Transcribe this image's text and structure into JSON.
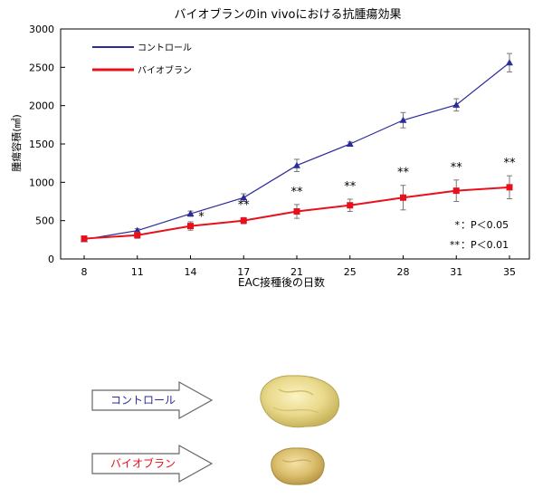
{
  "chart_data": {
    "type": "line",
    "title": "バイオブランのin vivoにおける抗腫瘍効果",
    "xlabel": "EAC接種後の日数",
    "ylabel": "腫瘍容積(㎣)",
    "categories": [
      "8",
      "11",
      "14",
      "17",
      "21",
      "25",
      "28",
      "31",
      "35"
    ],
    "ylim": [
      0,
      3000
    ],
    "yticks": [
      "0",
      "500",
      "1000",
      "1500",
      "2000",
      "2500",
      "3000"
    ],
    "grid": false,
    "legend_position": "top-left",
    "series": [
      {
        "name": "コントロール",
        "color": "#2b2b9a",
        "marker": "triangle",
        "values": [
          255,
          370,
          590,
          800,
          1220,
          1500,
          1810,
          2010,
          2560
        ],
        "errors": [
          20,
          25,
          35,
          50,
          80,
          25,
          100,
          80,
          120
        ]
      },
      {
        "name": "バイオブラン",
        "color": "#e8101a",
        "marker": "square",
        "values": [
          265,
          310,
          430,
          500,
          620,
          700,
          800,
          890,
          935
        ],
        "errors": [
          25,
          40,
          55,
          40,
          90,
          80,
          160,
          140,
          150
        ]
      }
    ],
    "significance": [
      {
        "category": "14",
        "label": "*"
      },
      {
        "category": "17",
        "label": "**"
      },
      {
        "category": "21",
        "label": "**"
      },
      {
        "category": "25",
        "label": "**"
      },
      {
        "category": "28",
        "label": "**"
      },
      {
        "category": "31",
        "label": "**"
      },
      {
        "category": "35",
        "label": "**"
      }
    ],
    "significance_key": [
      {
        "mark": "*",
        "text": "：P＜0.05"
      },
      {
        "mark": "**",
        "text": "：P＜0.01"
      }
    ]
  },
  "illustration": {
    "control_label": "コントロール",
    "control_color": "#2b2b9a",
    "treated_label": "バイオブラン",
    "treated_color": "#e8101a"
  }
}
